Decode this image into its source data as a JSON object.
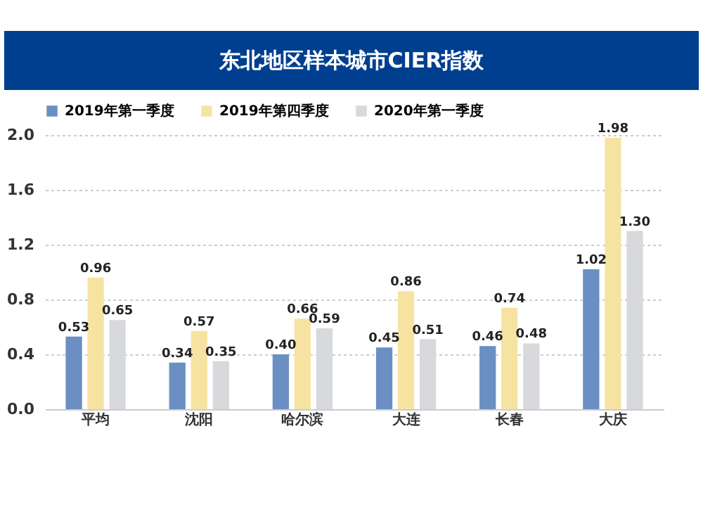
{
  "chart_data": {
    "type": "bar",
    "title": "东北地区样本城市CIER指数",
    "categories": [
      "平均",
      "沈阳",
      "哈尔滨",
      "大连",
      "长春",
      "大庆"
    ],
    "series": [
      {
        "name": "2019年第一季度",
        "color": "#6b8fc2",
        "values": [
          0.53,
          0.34,
          0.4,
          0.45,
          0.46,
          1.02
        ],
        "value_labels": [
          "0.53",
          "0.34",
          "0.40",
          "0.45",
          "0.46",
          "1.02"
        ]
      },
      {
        "name": "2019年第四季度",
        "color": "#f7e3a1",
        "values": [
          0.96,
          0.57,
          0.66,
          0.86,
          0.74,
          1.98
        ],
        "value_labels": [
          "0.96",
          "0.57",
          "0.66",
          "0.86",
          "0.74",
          "1.98"
        ]
      },
      {
        "name": "2020年第一季度",
        "color": "#d8d9dc",
        "values": [
          0.65,
          0.35,
          0.59,
          0.51,
          0.48,
          1.3
        ],
        "value_labels": [
          "0.65",
          "0.35",
          "0.59",
          "0.51",
          "0.48",
          "1.30"
        ]
      }
    ],
    "ylim": [
      0,
      2.0
    ],
    "yticks": [
      {
        "value": 0,
        "label": "0.0"
      },
      {
        "value": 0.4,
        "label": "0.4"
      },
      {
        "value": 0.8,
        "label": "0.8"
      },
      {
        "value": 1.2,
        "label": "1.2"
      },
      {
        "value": 1.6,
        "label": "1.6"
      },
      {
        "value": 2.0,
        "label": "2.0"
      }
    ],
    "grid": "y",
    "legend": "top left"
  }
}
